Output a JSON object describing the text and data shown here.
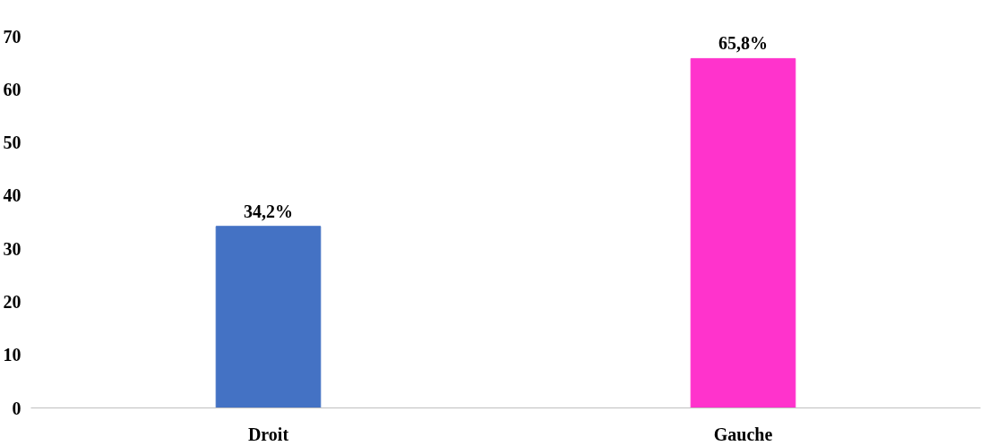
{
  "chart_data": {
    "type": "bar",
    "categories": [
      "Droit",
      "Gauche"
    ],
    "values": [
      34.2,
      65.8
    ],
    "colors": [
      "#4472c4",
      "#ff33cc"
    ],
    "value_labels": [
      "34,2%",
      "65,8%"
    ],
    "ylim": [
      0,
      70
    ],
    "yticks": [
      0,
      10,
      20,
      30,
      40,
      50,
      60,
      70
    ],
    "grid": false
  }
}
